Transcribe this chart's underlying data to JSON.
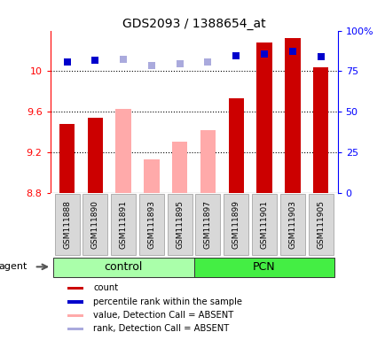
{
  "title": "GDS2093 / 1388654_at",
  "samples": [
    "GSM111888",
    "GSM111890",
    "GSM111891",
    "GSM111893",
    "GSM111895",
    "GSM111897",
    "GSM111899",
    "GSM111901",
    "GSM111903",
    "GSM111905"
  ],
  "bar_values": [
    9.48,
    9.54,
    null,
    null,
    null,
    null,
    9.73,
    10.28,
    10.33,
    10.04
  ],
  "absent_bar_values": [
    null,
    null,
    9.63,
    9.13,
    9.3,
    9.42,
    null,
    null,
    null,
    null
  ],
  "bar_color_present": "#cc0000",
  "bar_color_absent": "#ffaaaa",
  "rank_present": [
    80.5,
    81.5,
    null,
    null,
    null,
    null,
    84.5,
    85.5,
    87.0,
    84.0
  ],
  "rank_absent": [
    null,
    null,
    82.5,
    78.5,
    79.5,
    80.5,
    null,
    null,
    null,
    null
  ],
  "rank_color_present": "#0000cc",
  "rank_color_absent": "#aaaadd",
  "ylim_left": [
    8.8,
    10.4
  ],
  "ylim_right": [
    0,
    100
  ],
  "yticks_left": [
    8.8,
    9.2,
    9.6,
    10.0
  ],
  "ytick_labels_left": [
    "8.8",
    "9.2",
    "9.6",
    "10"
  ],
  "ytick_labels_right": [
    "0",
    "25",
    "50",
    "75",
    "100%"
  ],
  "grid_values": [
    9.2,
    9.6,
    10.0
  ],
  "group_info": [
    {
      "label": "control",
      "indices": [
        0,
        1,
        2,
        3,
        4
      ],
      "color": "#aaffaa"
    },
    {
      "label": "PCN",
      "indices": [
        5,
        6,
        7,
        8,
        9
      ],
      "color": "#44ee44"
    }
  ],
  "agent_label": "agent",
  "bar_width": 0.55,
  "marker_size": 6,
  "legend_items": [
    {
      "color": "#cc0000",
      "label": "count"
    },
    {
      "color": "#0000cc",
      "label": "percentile rank within the sample"
    },
    {
      "color": "#ffaaaa",
      "label": "value, Detection Call = ABSENT"
    },
    {
      "color": "#aaaadd",
      "label": "rank, Detection Call = ABSENT"
    }
  ]
}
